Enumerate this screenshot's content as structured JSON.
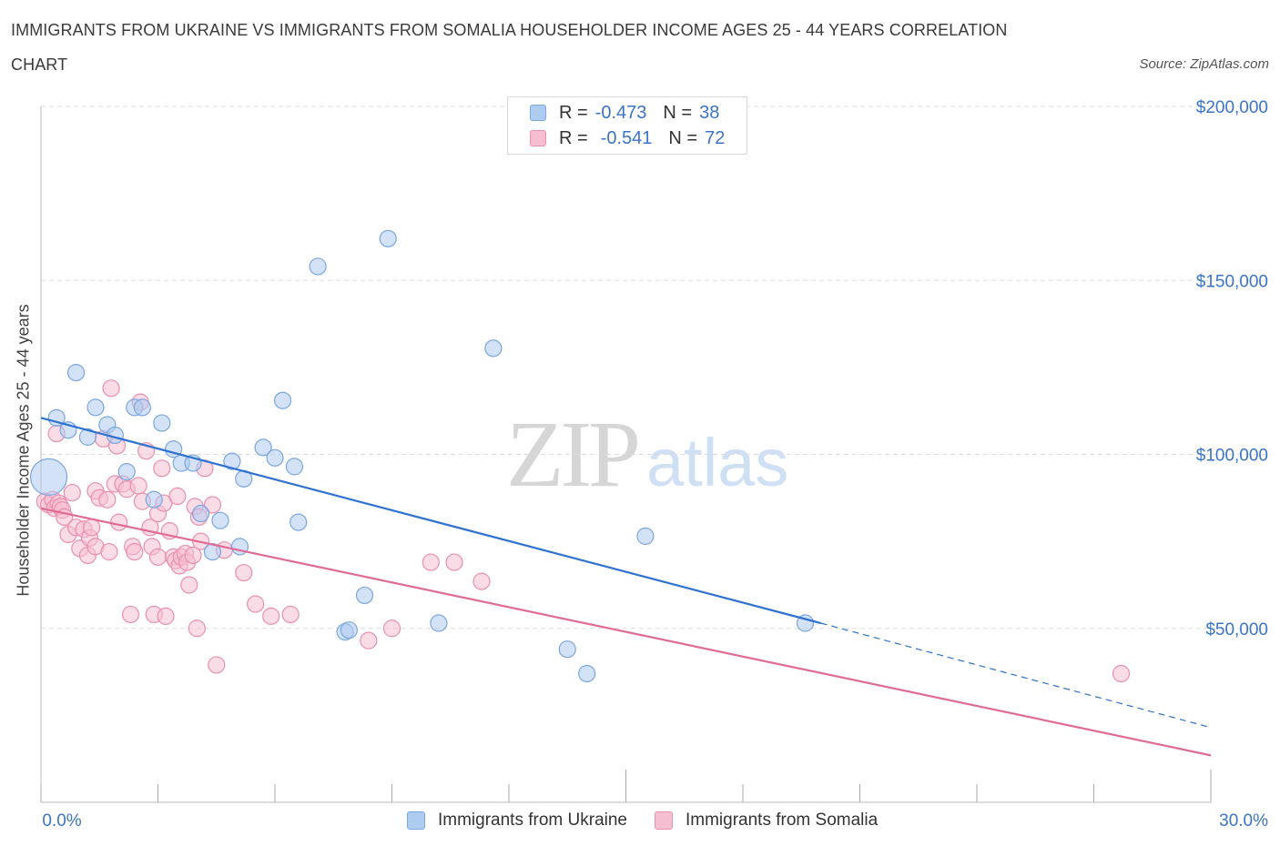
{
  "title": "IMMIGRANTS FROM UKRAINE VS IMMIGRANTS FROM SOMALIA HOUSEHOLDER INCOME AGES 25 - 44 YEARS CORRELATION CHART",
  "source": "Source: ZipAtlas.com",
  "watermark": {
    "zip": "ZIP",
    "atlas": "atlas"
  },
  "colors": {
    "ukraine_fill": "#aecbf0",
    "ukraine_stroke": "#7aa7e0",
    "ukraine_line": "#2f72d2",
    "somalia_fill": "#f6bfd1",
    "somalia_stroke": "#ea8fae",
    "somalia_line": "#e06b95",
    "axis_label": "#3a74c9",
    "grid": "#dddddd"
  },
  "legend_top": {
    "rows": [
      {
        "r_label": "R =",
        "r_value": "-0.473",
        "n_label": "N =",
        "n_value": "38"
      },
      {
        "r_label": "R =",
        "r_value": "-0.541",
        "n_label": "N =",
        "n_value": "72"
      }
    ]
  },
  "legend_bottom": [
    "Immigrants from Ukraine",
    "Immigrants from Somalia"
  ],
  "chart_data": {
    "type": "scatter",
    "title": "IMMIGRANTS FROM UKRAINE VS IMMIGRANTS FROM SOMALIA HOUSEHOLDER INCOME AGES 25 - 44 YEARS CORRELATION CHART",
    "xlabel": "",
    "ylabel": "Householder Income Ages 25 - 44 years",
    "xlim": [
      0,
      30
    ],
    "ylim": [
      0,
      200000
    ],
    "x_tick_labels": [
      "0.0%",
      "30.0%"
    ],
    "y_ticks": [
      50000,
      100000,
      150000,
      200000
    ],
    "y_tick_labels": [
      "$50,000",
      "$100,000",
      "$150,000",
      "$200,000"
    ],
    "grid": true,
    "legend_position": "bottom",
    "series": [
      {
        "name": "Immigrants from Ukraine",
        "r": -0.473,
        "n": 38,
        "trend": {
          "x": [
            0,
            20
          ],
          "y": [
            110500,
            51500
          ],
          "dashed_to": [
            30,
            21500
          ]
        },
        "points": [
          {
            "x": 0.2,
            "y": 93500,
            "big": true
          },
          {
            "x": 0.4,
            "y": 110500
          },
          {
            "x": 0.7,
            "y": 107000
          },
          {
            "x": 0.9,
            "y": 123500
          },
          {
            "x": 1.2,
            "y": 105000
          },
          {
            "x": 1.4,
            "y": 113500
          },
          {
            "x": 1.7,
            "y": 108500
          },
          {
            "x": 1.9,
            "y": 105500
          },
          {
            "x": 2.2,
            "y": 95000
          },
          {
            "x": 2.4,
            "y": 113500
          },
          {
            "x": 2.6,
            "y": 113500
          },
          {
            "x": 2.9,
            "y": 87000
          },
          {
            "x": 3.1,
            "y": 109000
          },
          {
            "x": 3.4,
            "y": 101500
          },
          {
            "x": 3.6,
            "y": 97500
          },
          {
            "x": 3.9,
            "y": 97500
          },
          {
            "x": 4.1,
            "y": 83000
          },
          {
            "x": 4.4,
            "y": 72000
          },
          {
            "x": 4.6,
            "y": 81000
          },
          {
            "x": 4.9,
            "y": 98000
          },
          {
            "x": 5.1,
            "y": 73500
          },
          {
            "x": 5.2,
            "y": 93000
          },
          {
            "x": 5.7,
            "y": 102000
          },
          {
            "x": 6.0,
            "y": 99000
          },
          {
            "x": 6.2,
            "y": 115500
          },
          {
            "x": 6.5,
            "y": 96500
          },
          {
            "x": 6.6,
            "y": 80500
          },
          {
            "x": 7.1,
            "y": 154000
          },
          {
            "x": 7.8,
            "y": 49000
          },
          {
            "x": 7.9,
            "y": 49500
          },
          {
            "x": 8.3,
            "y": 59500
          },
          {
            "x": 8.9,
            "y": 162000
          },
          {
            "x": 10.2,
            "y": 51500
          },
          {
            "x": 11.6,
            "y": 130500
          },
          {
            "x": 13.5,
            "y": 44000
          },
          {
            "x": 14.0,
            "y": 37000
          },
          {
            "x": 15.5,
            "y": 76500
          },
          {
            "x": 19.6,
            "y": 51500
          }
        ]
      },
      {
        "name": "Immigrants from Somalia",
        "r": -0.541,
        "n": 72,
        "trend": {
          "x": [
            0,
            30
          ],
          "y": [
            84500,
            13500
          ]
        },
        "points": [
          {
            "x": 0.1,
            "y": 86500
          },
          {
            "x": 0.2,
            "y": 85500
          },
          {
            "x": 0.3,
            "y": 87000
          },
          {
            "x": 0.35,
            "y": 84500
          },
          {
            "x": 0.4,
            "y": 106000
          },
          {
            "x": 0.45,
            "y": 86000
          },
          {
            "x": 0.5,
            "y": 85000
          },
          {
            "x": 0.55,
            "y": 84000
          },
          {
            "x": 0.6,
            "y": 82000
          },
          {
            "x": 0.7,
            "y": 77000
          },
          {
            "x": 0.8,
            "y": 89000
          },
          {
            "x": 0.9,
            "y": 79000
          },
          {
            "x": 1.0,
            "y": 73000
          },
          {
            "x": 1.1,
            "y": 78500
          },
          {
            "x": 1.2,
            "y": 71000
          },
          {
            "x": 1.25,
            "y": 76000
          },
          {
            "x": 1.3,
            "y": 79000
          },
          {
            "x": 1.4,
            "y": 73500
          },
          {
            "x": 1.4,
            "y": 89500
          },
          {
            "x": 1.5,
            "y": 87500
          },
          {
            "x": 1.6,
            "y": 104500
          },
          {
            "x": 1.7,
            "y": 87000
          },
          {
            "x": 1.75,
            "y": 72000
          },
          {
            "x": 1.8,
            "y": 119000
          },
          {
            "x": 1.9,
            "y": 91500
          },
          {
            "x": 1.95,
            "y": 102500
          },
          {
            "x": 2.0,
            "y": 80500
          },
          {
            "x": 2.1,
            "y": 91500
          },
          {
            "x": 2.2,
            "y": 90000
          },
          {
            "x": 2.3,
            "y": 54000
          },
          {
            "x": 2.35,
            "y": 73500
          },
          {
            "x": 2.4,
            "y": 72000
          },
          {
            "x": 2.5,
            "y": 91000
          },
          {
            "x": 2.55,
            "y": 115000
          },
          {
            "x": 2.6,
            "y": 86500
          },
          {
            "x": 2.7,
            "y": 101000
          },
          {
            "x": 2.8,
            "y": 79000
          },
          {
            "x": 2.85,
            "y": 73500
          },
          {
            "x": 2.9,
            "y": 54000
          },
          {
            "x": 3.0,
            "y": 70500
          },
          {
            "x": 3.0,
            "y": 83000
          },
          {
            "x": 3.1,
            "y": 96000
          },
          {
            "x": 3.15,
            "y": 86000
          },
          {
            "x": 3.2,
            "y": 53500
          },
          {
            "x": 3.3,
            "y": 78000
          },
          {
            "x": 3.4,
            "y": 70500
          },
          {
            "x": 3.45,
            "y": 69500
          },
          {
            "x": 3.5,
            "y": 88000
          },
          {
            "x": 3.55,
            "y": 68000
          },
          {
            "x": 3.6,
            "y": 70500
          },
          {
            "x": 3.7,
            "y": 71500
          },
          {
            "x": 3.75,
            "y": 69000
          },
          {
            "x": 3.8,
            "y": 62500
          },
          {
            "x": 3.9,
            "y": 71000
          },
          {
            "x": 3.95,
            "y": 85000
          },
          {
            "x": 4.0,
            "y": 50000
          },
          {
            "x": 4.05,
            "y": 82000
          },
          {
            "x": 4.1,
            "y": 75000
          },
          {
            "x": 4.2,
            "y": 96000
          },
          {
            "x": 4.4,
            "y": 85500
          },
          {
            "x": 4.5,
            "y": 39500
          },
          {
            "x": 4.7,
            "y": 72500
          },
          {
            "x": 5.2,
            "y": 66000
          },
          {
            "x": 5.5,
            "y": 57000
          },
          {
            "x": 5.9,
            "y": 53500
          },
          {
            "x": 6.4,
            "y": 54000
          },
          {
            "x": 8.4,
            "y": 46500
          },
          {
            "x": 9.0,
            "y": 50000
          },
          {
            "x": 10.0,
            "y": 69000
          },
          {
            "x": 10.6,
            "y": 69000
          },
          {
            "x": 11.3,
            "y": 63500
          },
          {
            "x": 27.7,
            "y": 37000
          }
        ]
      }
    ]
  }
}
